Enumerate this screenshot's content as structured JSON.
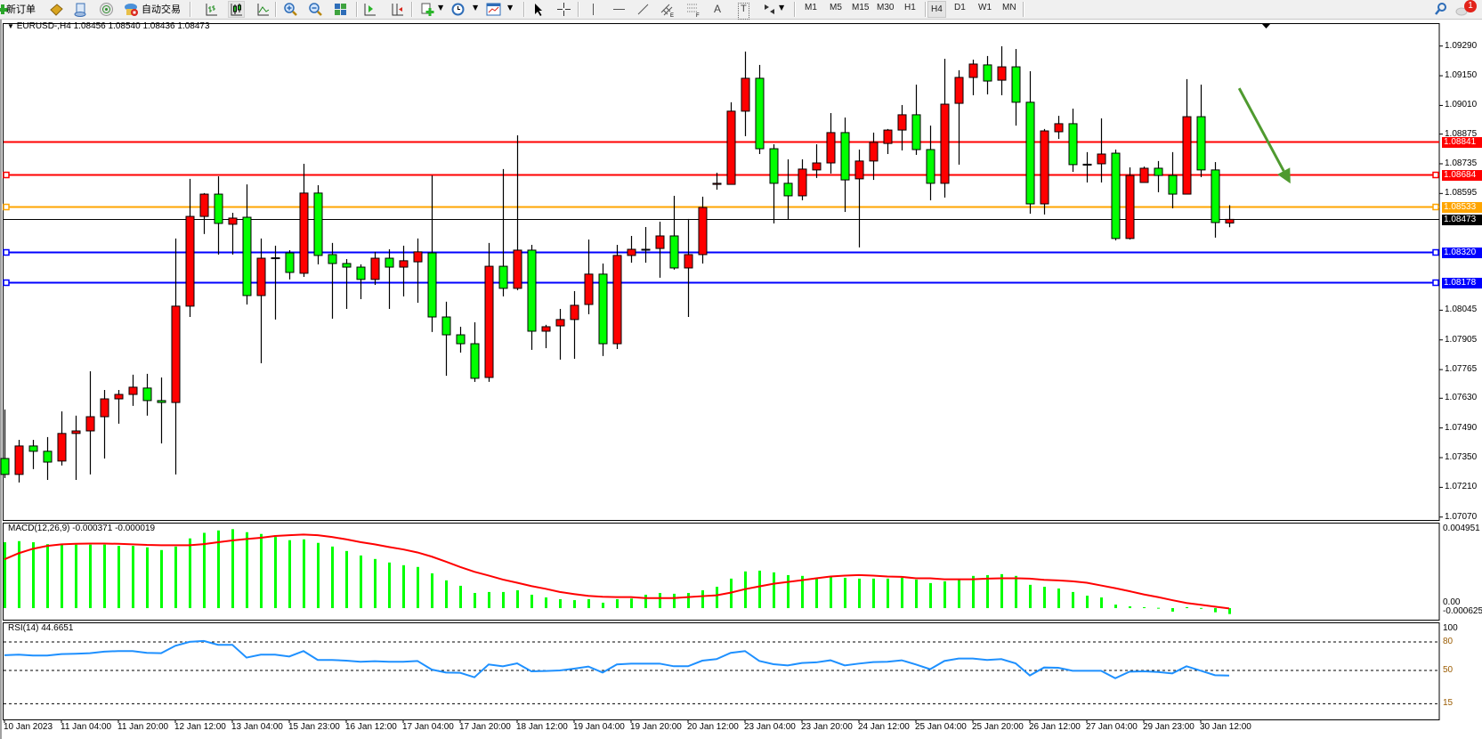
{
  "toolbar": {
    "new_order_label": "新订单",
    "autotrade_label": "自动交易",
    "text_tool_glyph": "A",
    "label_tool_glyph": "T",
    "timeframes": [
      "M1",
      "M5",
      "M15",
      "M30",
      "H1",
      "H4",
      "D1",
      "W1",
      "MN"
    ],
    "active_timeframe": "H4",
    "notification_count": "1",
    "icons": [
      "new-order-icon",
      "expert-advisors-icon",
      "history-center-icon",
      "signals-icon",
      "autotrade-icon",
      "bar-chart-icon",
      "candlestick-chart-icon",
      "line-chart-icon",
      "zoom-in-icon",
      "zoom-out-icon",
      "tile-windows-icon",
      "auto-scroll-icon",
      "chart-shift-icon",
      "indicators-icon",
      "periods-icon",
      "templates-icon",
      "cursor-icon",
      "crosshair-icon",
      "vertical-line-icon",
      "horizontal-line-icon",
      "trendline-icon",
      "equidistant-channel-icon",
      "fibonacci-icon",
      "text-icon",
      "text-label-icon",
      "arrows-icon",
      "search-icon",
      "notification-icon"
    ]
  },
  "chart": {
    "header": "EURUSD-,H4  1.08456 1.08540 1.08436 1.08473",
    "symbol": "EURUSD-",
    "timeframe": "H4",
    "colors": {
      "bull": "#ff0000",
      "bear": "#00ff00",
      "wick": "#000000",
      "arrow": "#4f9a2f"
    },
    "price_ticks": [
      "1.09290",
      "1.09150",
      "1.09010",
      "1.08875",
      "1.08735",
      "1.08595",
      "1.08045",
      "1.07905",
      "1.07765",
      "1.07630",
      "1.07490",
      "1.07350",
      "1.07210",
      "1.07070"
    ],
    "levels": [
      {
        "price": "1.08841",
        "color": "#ff0000",
        "handle": false
      },
      {
        "price": "1.08684",
        "color": "#ff0000",
        "handle": true
      },
      {
        "price": "1.08533",
        "color": "#ffa500",
        "handle": true
      },
      {
        "price": "1.08473",
        "color": "#000000",
        "handle": false,
        "bid": true
      },
      {
        "price": "1.08320",
        "color": "#0000ff",
        "handle": true
      },
      {
        "price": "1.08178",
        "color": "#0000ff",
        "handle": true
      }
    ],
    "arrow": {
      "from": {
        "bar": 86.7,
        "price": 1.09091
      },
      "to": {
        "bar": 90.3,
        "price": 1.08642
      },
      "direction": "down"
    }
  },
  "chart_data": {
    "type": "candlestick",
    "ohlc_order": [
      "open",
      "high",
      "low",
      "close"
    ],
    "ylim": [
      1.0707,
      1.0929
    ],
    "candles": [
      [
        1.07346,
        1.07577,
        1.07254,
        1.07271
      ],
      [
        1.07271,
        1.07434,
        1.07233,
        1.07405
      ],
      [
        1.07405,
        1.07434,
        1.07296,
        1.0738
      ],
      [
        1.0738,
        1.07447,
        1.07245,
        1.07329
      ],
      [
        1.07334,
        1.07568,
        1.07313,
        1.07464
      ],
      [
        1.07464,
        1.07548,
        1.07245,
        1.07476
      ],
      [
        1.07476,
        1.07757,
        1.07271,
        1.07543
      ],
      [
        1.07543,
        1.07669,
        1.07346,
        1.07627
      ],
      [
        1.07627,
        1.07669,
        1.0751,
        1.07648
      ],
      [
        1.07648,
        1.07741,
        1.07594,
        1.07682
      ],
      [
        1.07678,
        1.07745,
        1.07548,
        1.07619
      ],
      [
        1.07619,
        1.07728,
        1.07417,
        1.0761
      ],
      [
        1.0761,
        1.08383,
        1.07271,
        1.08064
      ],
      [
        1.08064,
        1.08664,
        1.08013,
        1.08487
      ],
      [
        1.08487,
        1.08597,
        1.08404,
        1.08592
      ],
      [
        1.08592,
        1.08676,
        1.08307,
        1.08454
      ],
      [
        1.0845,
        1.08504,
        1.08307,
        1.08479
      ],
      [
        1.08483,
        1.08638,
        1.08072,
        1.08114
      ],
      [
        1.08114,
        1.08383,
        1.07795,
        1.0829
      ],
      [
        1.0829,
        1.08349,
        1.08001,
        1.08292
      ],
      [
        1.08315,
        1.08328,
        1.0819,
        1.08223
      ],
      [
        1.08219,
        1.08735,
        1.08202,
        1.08597
      ],
      [
        1.08597,
        1.08634,
        1.08261,
        1.08303
      ],
      [
        1.08307,
        1.08362,
        1.08005,
        1.08265
      ],
      [
        1.08265,
        1.08286,
        1.08051,
        1.08248
      ],
      [
        1.08248,
        1.08261,
        1.08097,
        1.0819
      ],
      [
        1.0819,
        1.0832,
        1.08164,
        1.0829
      ],
      [
        1.0829,
        1.08332,
        1.08051,
        1.08248
      ],
      [
        1.08248,
        1.08349,
        1.0811,
        1.08278
      ],
      [
        1.08273,
        1.08383,
        1.0808,
        1.0832
      ],
      [
        1.08315,
        1.0868,
        1.07942,
        1.08013
      ],
      [
        1.08013,
        1.08085,
        1.07736,
        1.07929
      ],
      [
        1.07929,
        1.07967,
        1.07845,
        1.07887
      ],
      [
        1.07887,
        1.07988,
        1.07707,
        1.07724
      ],
      [
        1.07728,
        1.08362,
        1.07707,
        1.08252
      ],
      [
        1.08252,
        1.0871,
        1.0811,
        1.08148
      ],
      [
        1.08148,
        1.08869,
        1.08139,
        1.08328
      ],
      [
        1.08328,
        1.08353,
        1.07858,
        1.07946
      ],
      [
        1.07946,
        1.07976,
        1.07866,
        1.07967
      ],
      [
        1.07971,
        1.08051,
        1.07812,
        1.08001
      ],
      [
        1.08001,
        1.08135,
        1.07816,
        1.08068
      ],
      [
        1.08072,
        1.08378,
        1.08026,
        1.08215
      ],
      [
        1.08215,
        1.08265,
        1.07829,
        1.07887
      ],
      [
        1.07887,
        1.08353,
        1.07862,
        1.08303
      ],
      [
        1.08303,
        1.08395,
        1.08269,
        1.08332
      ],
      [
        1.0833,
        1.08437,
        1.08269,
        1.08332
      ],
      [
        1.08336,
        1.08462,
        1.08198,
        1.08395
      ],
      [
        1.08395,
        1.08584,
        1.08236,
        1.08244
      ],
      [
        1.08244,
        1.08475,
        1.08013,
        1.08307
      ],
      [
        1.08307,
        1.0858,
        1.08265,
        1.08529
      ],
      [
        1.08638,
        1.08693,
        1.08613,
        1.08643
      ],
      [
        1.08638,
        1.09025,
        1.08638,
        1.08983
      ],
      [
        1.08983,
        1.09264,
        1.08865,
        1.09138
      ],
      [
        1.09138,
        1.09201,
        1.08781,
        1.08806
      ],
      [
        1.08806,
        1.08827,
        1.08454,
        1.08643
      ],
      [
        1.08643,
        1.08756,
        1.08471,
        1.08584
      ],
      [
        1.08584,
        1.08756,
        1.08563,
        1.0871
      ],
      [
        1.08706,
        1.08827,
        1.08668,
        1.08739
      ],
      [
        1.08739,
        1.08974,
        1.08689,
        1.08882
      ],
      [
        1.08882,
        1.08953,
        1.08508,
        1.08659
      ],
      [
        1.08664,
        1.08802,
        1.08341,
        1.08748
      ],
      [
        1.08748,
        1.08882,
        1.08659,
        1.08836
      ],
      [
        1.08831,
        1.08899,
        1.08781,
        1.08894
      ],
      [
        1.08894,
        1.09012,
        1.08798,
        1.08966
      ],
      [
        1.08966,
        1.09108,
        1.08777,
        1.08802
      ],
      [
        1.08802,
        1.08915,
        1.08563,
        1.08643
      ],
      [
        1.08643,
        1.0923,
        1.08576,
        1.09016
      ],
      [
        1.0902,
        1.09176,
        1.08731,
        1.09142
      ],
      [
        1.09142,
        1.09226,
        1.09058,
        1.09205
      ],
      [
        1.09201,
        1.09243,
        1.09062,
        1.09125
      ],
      [
        1.09129,
        1.09289,
        1.09058,
        1.09192
      ],
      [
        1.09192,
        1.09276,
        1.08915,
        1.09025
      ],
      [
        1.09025,
        1.09171,
        1.085,
        1.08546
      ],
      [
        1.08546,
        1.08899,
        1.08496,
        1.0889
      ],
      [
        1.08886,
        1.08961,
        1.08852,
        1.08924
      ],
      [
        1.08924,
        1.08995,
        1.08697,
        1.08731
      ],
      [
        1.08731,
        1.0879,
        1.08647,
        1.08733
      ],
      [
        1.08735,
        1.08949,
        1.08647,
        1.08781
      ],
      [
        1.08785,
        1.08802,
        1.08374,
        1.08383
      ],
      [
        1.08383,
        1.08718,
        1.08378,
        1.0868
      ],
      [
        1.08647,
        1.08722,
        1.08647,
        1.08714
      ],
      [
        1.08714,
        1.08748,
        1.08601,
        1.0868
      ],
      [
        1.0868,
        1.0879,
        1.08525,
        1.08592
      ],
      [
        1.08592,
        1.09134,
        1.08592,
        1.08957
      ],
      [
        1.08957,
        1.09108,
        1.08672,
        1.08706
      ],
      [
        1.08706,
        1.08743,
        1.08387,
        1.08458
      ],
      [
        1.08456,
        1.0854,
        1.08436,
        1.08473
      ]
    ],
    "x_tick_labels": [
      "10 Jan 2023",
      "11 Jan 04:00",
      "11 Jan 20:00",
      "12 Jan 12:00",
      "13 Jan 04:00",
      "15 Jan 23:00",
      "16 Jan 12:00",
      "17 Jan 04:00",
      "17 Jan 20:00",
      "18 Jan 12:00",
      "19 Jan 04:00",
      "19 Jan 20:00",
      "20 Jan 12:00",
      "23 Jan 04:00",
      "23 Jan 20:00",
      "24 Jan 12:00",
      "25 Jan 04:00",
      "25 Jan 20:00",
      "26 Jan 12:00",
      "27 Jan 04:00",
      "29 Jan 23:00",
      "30 Jan 12:00"
    ],
    "macd": {
      "label": "MACD(12,26,9) -0.000371 -0.000019",
      "axis_labels": [
        "0.004951",
        "0.00",
        "-0.000625"
      ],
      "ylim": [
        -0.000625,
        0.004951
      ],
      "histogram": [
        0.00413,
        0.0042,
        0.00413,
        0.00401,
        0.00398,
        0.00398,
        0.00398,
        0.00398,
        0.0039,
        0.0039,
        0.00381,
        0.00364,
        0.00386,
        0.00437,
        0.00472,
        0.00487,
        0.00495,
        0.00476,
        0.00465,
        0.00446,
        0.00426,
        0.00431,
        0.00409,
        0.00386,
        0.00358,
        0.0033,
        0.00308,
        0.00286,
        0.00269,
        0.00258,
        0.00218,
        0.00174,
        0.0014,
        0.00095,
        0.00101,
        0.00101,
        0.00112,
        0.00084,
        0.00067,
        0.00056,
        0.0005,
        0.00056,
        0.00034,
        0.00056,
        0.0006,
        0.00084,
        0.00095,
        0.0009,
        0.00095,
        0.00112,
        0.00134,
        0.00185,
        0.0023,
        0.00235,
        0.00224,
        0.00207,
        0.00202,
        0.0019,
        0.00196,
        0.0019,
        0.00185,
        0.00185,
        0.00185,
        0.0019,
        0.00179,
        0.00157,
        0.00168,
        0.00179,
        0.00202,
        0.00207,
        0.00213,
        0.00202,
        0.00146,
        0.00134,
        0.00123,
        0.00101,
        0.00078,
        0.00067,
        0.00022,
        0.00011,
        6e-05,
        2e-05,
        -0.00022,
        6e-05,
        1e-05,
        -0.00026,
        -0.000371
      ],
      "signal": [
        0.00306,
        0.00344,
        0.00372,
        0.0039,
        0.004,
        0.00403,
        0.00405,
        0.00405,
        0.00403,
        0.004,
        0.00396,
        0.00394,
        0.00394,
        0.00394,
        0.00401,
        0.00413,
        0.00424,
        0.00433,
        0.00441,
        0.00452,
        0.00457,
        0.00461,
        0.00457,
        0.00446,
        0.00431,
        0.00414,
        0.004,
        0.00383,
        0.00368,
        0.00349,
        0.00323,
        0.00291,
        0.00258,
        0.00228,
        0.00204,
        0.00179,
        0.00159,
        0.00138,
        0.00121,
        0.00101,
        0.00088,
        0.00077,
        0.00071,
        0.00069,
        0.00069,
        0.00063,
        0.00063,
        0.00063,
        0.00069,
        0.00075,
        0.0008,
        0.00097,
        0.00119,
        0.00136,
        0.00153,
        0.00164,
        0.00175,
        0.00187,
        0.00198,
        0.00204,
        0.00207,
        0.00204,
        0.00198,
        0.00196,
        0.00187,
        0.00187,
        0.00181,
        0.00181,
        0.00181,
        0.00185,
        0.00187,
        0.00187,
        0.00185,
        0.00177,
        0.00174,
        0.00168,
        0.00159,
        0.00142,
        0.00125,
        0.00106,
        0.00086,
        0.00069,
        0.0005,
        0.00032,
        0.00021,
        9e-05,
        -1.9e-05
      ],
      "colors": {
        "histogram": "#00ff00",
        "signal": "#ff0000"
      }
    },
    "rsi": {
      "label": "RSI(14) 44.6651",
      "axis_labels": [
        "100",
        "80",
        "50",
        "15"
      ],
      "levels": [
        80,
        50,
        15
      ],
      "ylim": [
        0,
        100
      ],
      "values": [
        66.0,
        66.6,
        65.7,
        65.7,
        67.2,
        67.6,
        68.2,
        69.8,
        70.4,
        70.4,
        68.5,
        68.2,
        76.0,
        80.1,
        81.0,
        77.0,
        77.0,
        63.5,
        66.6,
        66.6,
        64.7,
        70.4,
        61.0,
        61.0,
        60.3,
        59.1,
        59.7,
        59.1,
        59.1,
        60.0,
        50.9,
        47.8,
        47.5,
        42.8,
        56.3,
        54.4,
        57.5,
        49.1,
        49.4,
        50.0,
        51.9,
        54.1,
        47.8,
        56.3,
        57.2,
        57.2,
        57.2,
        54.4,
        54.4,
        60.3,
        61.9,
        68.5,
        70.4,
        60.0,
        56.6,
        55.3,
        57.8,
        58.5,
        60.7,
        55.3,
        57.2,
        58.8,
        59.1,
        60.7,
        56.3,
        51.3,
        60.0,
        62.5,
        62.5,
        61.0,
        61.9,
        57.5,
        44.7,
        53.1,
        52.8,
        49.7,
        49.7,
        49.7,
        41.8,
        48.7,
        49.1,
        48.4,
        46.9,
        54.4,
        49.7,
        45.0,
        44.6651
      ],
      "color": "#1e90ff"
    }
  }
}
